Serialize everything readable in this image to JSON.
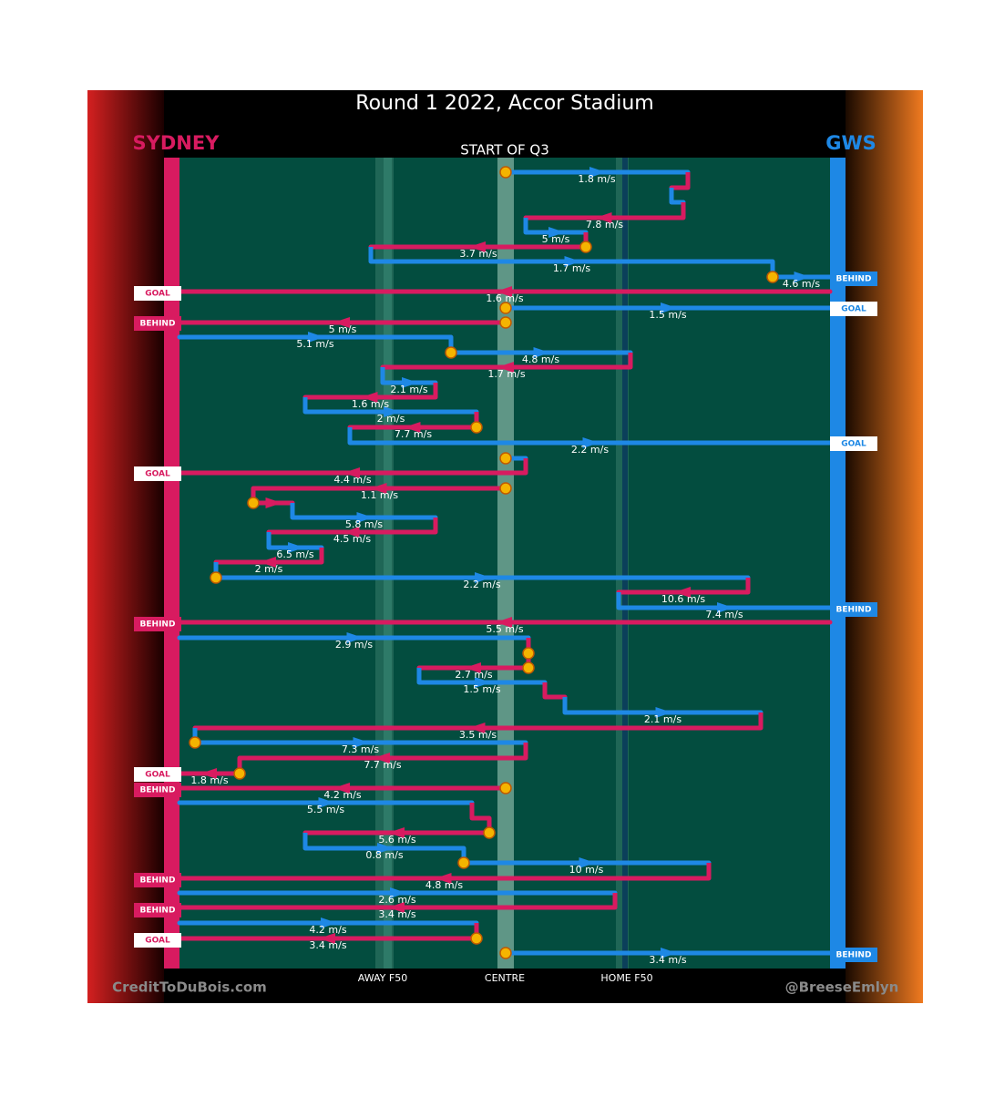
{
  "header": {
    "title": "Round 1 2022, Accor Stadium",
    "home_team": "SYDNEY",
    "away_team": "GWS",
    "period": "START OF Q3"
  },
  "speeds": [
    "1.8 m/s",
    "7.8 m/s",
    "5 m/s",
    "3.7 m/s",
    "1.7 m/s",
    "4.6 m/s",
    "1.6 m/s",
    "1.5 m/s",
    "5 m/s",
    "5.1 m/s",
    "4.8 m/s",
    "1.7 m/s",
    "2.1 m/s",
    "1.6 m/s",
    "2 m/s",
    "7.7 m/s",
    "2.2 m/s",
    "4.4 m/s",
    "1.1 m/s",
    "5.8 m/s",
    "4.5 m/s",
    "6.5 m/s",
    "2 m/s",
    "2.2 m/s",
    "10.6 m/s",
    "7.4 m/s",
    "5.5 m/s",
    "2.9 m/s",
    "2.7 m/s",
    "1.5 m/s",
    "2.1 m/s",
    "3.5 m/s",
    "7.3 m/s",
    "7.7 m/s",
    "1.8 m/s",
    "4.2 m/s",
    "5.5 m/s",
    "5.6 m/s",
    "0.8 m/s",
    "10 m/s",
    "4.8 m/s",
    "2.6 m/s",
    "3.4 m/s",
    "4.2 m/s",
    "3.4 m/s",
    "3.4 m/s"
  ],
  "outcomes": [
    "BEHIND",
    "GOAL",
    "GOAL",
    "BEHIND",
    "GOAL",
    "GOAL",
    "BEHIND",
    "BEHIND",
    "GOAL",
    "BEHIND",
    "BEHIND",
    "BEHIND",
    "GOAL",
    "BEHIND"
  ],
  "field_labels": [
    "AWAY F50",
    "CENTRE",
    "HOME F50"
  ],
  "footer": {
    "credit_left": "CreditToDuBois.com",
    "credit_right": "@BreeseEmlyn"
  }
}
